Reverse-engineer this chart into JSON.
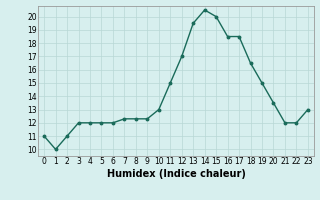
{
  "x": [
    0,
    1,
    2,
    3,
    4,
    5,
    6,
    7,
    8,
    9,
    10,
    11,
    12,
    13,
    14,
    15,
    16,
    17,
    18,
    19,
    20,
    21,
    22,
    23
  ],
  "y": [
    11,
    10,
    11,
    12,
    12,
    12,
    12,
    12.3,
    12.3,
    12.3,
    13,
    15,
    17,
    19.5,
    20.5,
    20,
    18.5,
    18.5,
    16.5,
    15,
    13.5,
    12,
    12,
    13
  ],
  "line_color": "#1a6b5a",
  "marker": "o",
  "markersize": 1.8,
  "linewidth": 1.0,
  "xlabel": "Humidex (Indice chaleur)",
  "xlim": [
    -0.5,
    23.5
  ],
  "ylim": [
    9.5,
    20.8
  ],
  "yticks": [
    10,
    11,
    12,
    13,
    14,
    15,
    16,
    17,
    18,
    19,
    20
  ],
  "xtick_labels": [
    "0",
    "1",
    "2",
    "3",
    "4",
    "5",
    "6",
    "7",
    "8",
    "9",
    "10",
    "11",
    "12",
    "13",
    "14",
    "15",
    "16",
    "17",
    "18",
    "19",
    "20",
    "21",
    "22",
    "23"
  ],
  "background_color": "#d7efee",
  "grid_color": "#b8d8d5",
  "tick_fontsize": 5.5,
  "xlabel_fontsize": 7.0,
  "spine_color": "#999999"
}
